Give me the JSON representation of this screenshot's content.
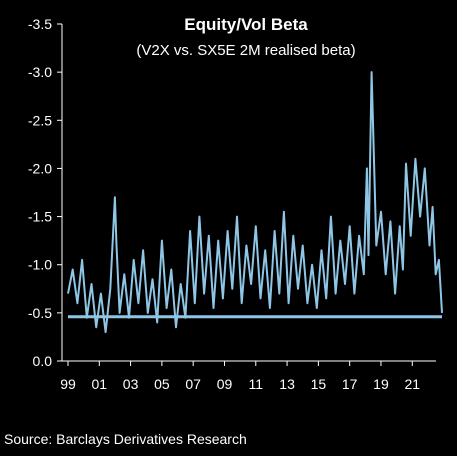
{
  "chart_data": {
    "type": "line",
    "title": "Equity/Vol Beta",
    "subtitle": "(V2X vs. SX5E 2M realised beta)",
    "source": "Source: Barclays Derivatives Research",
    "xlabel": "",
    "ylabel": "",
    "y_axis_reversed": true,
    "ylim": [
      0.0,
      -3.5
    ],
    "y_ticks": [
      "-3.5",
      "-3.0",
      "-2.5",
      "-2.0",
      "-1.5",
      "-1.0",
      "-0.5",
      "0.0"
    ],
    "y_tick_values": [
      -3.5,
      -3.0,
      -2.5,
      -2.0,
      -1.5,
      -1.0,
      -0.5,
      0.0
    ],
    "x_range": [
      1999,
      2022.9
    ],
    "x_ticks": [
      "99",
      "01",
      "03",
      "05",
      "07",
      "09",
      "11",
      "13",
      "15",
      "17",
      "19",
      "21"
    ],
    "x_tick_values": [
      1999,
      2001,
      2003,
      2005,
      2007,
      2009,
      2011,
      2013,
      2015,
      2017,
      2019,
      2021
    ],
    "grid": false,
    "line_color": "#8fc6e6",
    "series": [
      {
        "name": "",
        "x": [
          1999.0,
          1999.3,
          1999.6,
          1999.9,
          2000.2,
          2000.5,
          2000.8,
          2001.1,
          2001.4,
          2001.7,
          2002.0,
          2002.1,
          2002.3,
          2002.6,
          2002.9,
          2003.2,
          2003.5,
          2003.8,
          2004.1,
          2004.4,
          2004.7,
          2005.0,
          2005.3,
          2005.6,
          2005.9,
          2006.2,
          2006.5,
          2006.8,
          2007.1,
          2007.4,
          2007.7,
          2008.0,
          2008.3,
          2008.6,
          2008.9,
          2009.2,
          2009.5,
          2009.8,
          2010.1,
          2010.4,
          2010.7,
          2011.0,
          2011.3,
          2011.6,
          2011.9,
          2012.2,
          2012.5,
          2012.8,
          2013.1,
          2013.4,
          2013.7,
          2014.0,
          2014.3,
          2014.6,
          2014.9,
          2015.2,
          2015.5,
          2015.8,
          2016.1,
          2016.4,
          2016.7,
          2017.0,
          2017.3,
          2017.6,
          2017.9,
          2018.1,
          2018.2,
          2018.4,
          2018.7,
          2019.0,
          2019.3,
          2019.6,
          2019.9,
          2020.2,
          2020.4,
          2020.6,
          2020.9,
          2021.2,
          2021.5,
          2021.8,
          2022.1,
          2022.3,
          2022.5,
          2022.7,
          2022.9
        ],
        "values": [
          -0.7,
          -0.95,
          -0.6,
          -1.05,
          -0.45,
          -0.8,
          -0.35,
          -0.7,
          -0.3,
          -0.75,
          -1.7,
          -1.2,
          -0.5,
          -0.9,
          -0.45,
          -1.05,
          -0.6,
          -1.15,
          -0.5,
          -0.85,
          -0.4,
          -1.25,
          -0.55,
          -0.95,
          -0.35,
          -0.8,
          -0.45,
          -1.35,
          -0.6,
          -1.5,
          -0.7,
          -1.3,
          -0.55,
          -1.25,
          -0.65,
          -1.35,
          -0.75,
          -1.5,
          -0.6,
          -1.2,
          -0.8,
          -1.4,
          -0.65,
          -1.15,
          -0.55,
          -1.35,
          -0.7,
          -1.55,
          -0.6,
          -1.3,
          -0.75,
          -1.2,
          -0.6,
          -1.0,
          -0.55,
          -1.15,
          -0.65,
          -1.5,
          -0.7,
          -1.25,
          -0.8,
          -1.4,
          -0.7,
          -1.3,
          -0.9,
          -2.0,
          -1.1,
          -3.0,
          -1.2,
          -1.55,
          -0.9,
          -1.45,
          -0.7,
          -1.4,
          -0.95,
          -2.05,
          -1.3,
          -2.1,
          -1.5,
          -2.0,
          -1.2,
          -1.6,
          -0.9,
          -1.05,
          -0.5
        ]
      },
      {
        "name": "",
        "x": [
          1999.0,
          2022.9
        ],
        "values": [
          -0.46,
          -0.46
        ]
      }
    ]
  }
}
